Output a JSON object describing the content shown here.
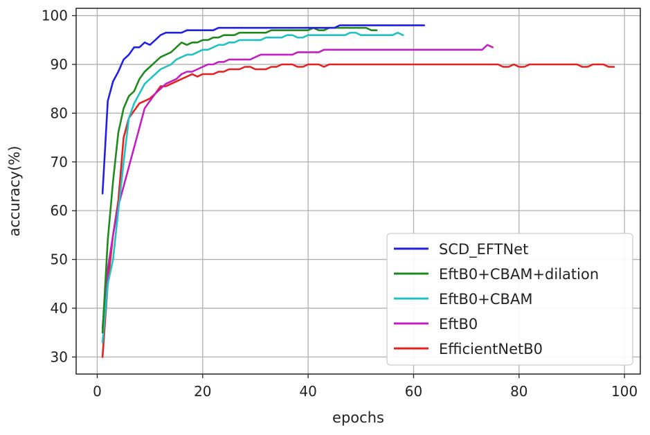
{
  "chart_data": {
    "type": "line",
    "title": "",
    "xlabel": "epochs",
    "ylabel": "accuracy(%)",
    "xlim": [
      -4,
      103
    ],
    "ylim": [
      26.5,
      101.5
    ],
    "xticks": [
      0,
      20,
      40,
      60,
      80,
      100
    ],
    "yticks": [
      30,
      40,
      50,
      60,
      70,
      80,
      90,
      100
    ],
    "grid": true,
    "legend_position": "lower-right",
    "series": [
      {
        "name": "SCD_EFTNet",
        "color": "#1f1fe6",
        "x": [
          1,
          2,
          3,
          4,
          5,
          6,
          7,
          8,
          9,
          10,
          11,
          12,
          13,
          14,
          15,
          16,
          17,
          18,
          19,
          20,
          21,
          22,
          23,
          24,
          25,
          26,
          27,
          28,
          29,
          30,
          31,
          32,
          33,
          34,
          35,
          36,
          37,
          38,
          39,
          40,
          41,
          42,
          43,
          44,
          45,
          46,
          47,
          48,
          49,
          50,
          51,
          52,
          53,
          54,
          55,
          56,
          57,
          58,
          59,
          60,
          61,
          62
        ],
        "y": [
          63.5,
          82.5,
          86.5,
          88.5,
          91,
          92,
          93.5,
          93.5,
          94.5,
          94,
          95,
          96,
          96.5,
          96.5,
          96.5,
          96.5,
          97,
          97,
          97,
          97,
          97,
          97,
          97.5,
          97.5,
          97.5,
          97.5,
          97.5,
          97.5,
          97.5,
          97.5,
          97.5,
          97.5,
          97.5,
          97.5,
          97.5,
          97.5,
          97.5,
          97.5,
          97.5,
          97.5,
          97.5,
          97.5,
          97.5,
          97.5,
          97.5,
          98,
          98,
          98,
          98,
          98,
          98,
          98,
          98,
          98,
          98,
          98,
          98,
          98,
          98,
          98,
          98,
          98
        ]
      },
      {
        "name": "EftB0+CBAM+dilation",
        "color": "#1e8a1e",
        "x": [
          1,
          2,
          3,
          4,
          5,
          6,
          7,
          8,
          9,
          10,
          11,
          12,
          13,
          14,
          15,
          16,
          17,
          18,
          19,
          20,
          21,
          22,
          23,
          24,
          25,
          26,
          27,
          28,
          29,
          30,
          31,
          32,
          33,
          34,
          35,
          36,
          37,
          38,
          39,
          40,
          41,
          42,
          43,
          44,
          45,
          46,
          47,
          48,
          49,
          50,
          51,
          52,
          53
        ],
        "y": [
          35,
          54,
          66,
          76,
          81,
          83.5,
          84.5,
          87,
          88.5,
          89.5,
          90.5,
          91.5,
          92,
          92.5,
          93.5,
          94.5,
          94,
          94.5,
          94.5,
          95,
          95,
          95.5,
          95.5,
          96,
          96,
          96,
          96.5,
          96.5,
          96.5,
          96.5,
          96.5,
          96.5,
          97,
          97,
          97,
          97,
          97,
          97,
          97,
          97,
          97.5,
          97,
          97,
          97.5,
          97.5,
          97.5,
          97.5,
          97.5,
          97.5,
          97.5,
          97.5,
          97,
          97
        ]
      },
      {
        "name": "EftB0+CBAM",
        "color": "#1fc2c2",
        "x": [
          1,
          2,
          3,
          4,
          5,
          6,
          7,
          8,
          9,
          10,
          11,
          12,
          13,
          14,
          15,
          16,
          17,
          18,
          19,
          20,
          21,
          22,
          23,
          24,
          25,
          26,
          27,
          28,
          29,
          30,
          31,
          32,
          33,
          34,
          35,
          36,
          37,
          38,
          39,
          40,
          41,
          42,
          43,
          44,
          45,
          46,
          47,
          48,
          49,
          50,
          51,
          52,
          53,
          54,
          55,
          56,
          57,
          58
        ],
        "y": [
          33,
          45,
          50,
          60,
          70,
          79,
          82,
          84,
          86,
          87,
          88,
          89,
          89.5,
          90,
          91,
          91.5,
          92,
          92,
          92.5,
          93,
          93,
          93.5,
          94,
          94,
          94.5,
          94.5,
          95,
          95,
          95,
          95,
          95,
          95.5,
          95.5,
          95.5,
          95.5,
          96,
          96,
          95.5,
          95.5,
          96,
          96,
          96,
          96,
          96,
          96,
          96,
          96,
          96.5,
          96.5,
          96,
          96,
          96,
          96,
          96,
          96,
          96,
          96.5,
          96
        ]
      },
      {
        "name": "EftB0",
        "color": "#c21fc2",
        "x": [
          1,
          2,
          3,
          4,
          5,
          6,
          7,
          8,
          9,
          10,
          11,
          12,
          13,
          14,
          15,
          16,
          17,
          18,
          19,
          20,
          21,
          22,
          23,
          24,
          25,
          26,
          27,
          28,
          29,
          30,
          31,
          32,
          33,
          34,
          35,
          36,
          37,
          38,
          39,
          40,
          41,
          42,
          43,
          44,
          45,
          46,
          47,
          48,
          49,
          50,
          51,
          52,
          53,
          54,
          55,
          56,
          57,
          58,
          59,
          60,
          61,
          62,
          63,
          64,
          65,
          66,
          67,
          68,
          69,
          70,
          71,
          72,
          73,
          74,
          75
        ],
        "y": [
          36,
          48,
          55,
          61,
          65,
          69,
          73,
          77,
          81,
          82.5,
          84,
          85,
          86,
          86.5,
          87,
          88,
          88.5,
          88.5,
          89,
          89.5,
          90,
          90,
          90.5,
          90.5,
          91,
          91,
          91,
          91,
          91,
          91.5,
          92,
          92,
          92,
          92,
          92,
          92,
          92,
          92.5,
          92.5,
          92.5,
          92.5,
          92.5,
          93,
          93,
          93,
          93,
          93,
          93,
          93,
          93,
          93,
          93,
          93,
          93,
          93,
          93,
          93,
          93,
          93,
          93,
          93,
          93,
          93,
          93,
          93,
          93,
          93,
          93,
          93,
          93,
          93,
          93,
          93,
          94,
          93.5
        ]
      },
      {
        "name": "EfficientNetB0",
        "color": "#e61f1f",
        "x": [
          1,
          2,
          3,
          4,
          5,
          6,
          7,
          8,
          9,
          10,
          11,
          12,
          13,
          14,
          15,
          16,
          17,
          18,
          19,
          20,
          21,
          22,
          23,
          24,
          25,
          26,
          27,
          28,
          29,
          30,
          31,
          32,
          33,
          34,
          35,
          36,
          37,
          38,
          39,
          40,
          41,
          42,
          43,
          44,
          45,
          46,
          47,
          48,
          49,
          50,
          51,
          52,
          53,
          54,
          55,
          56,
          57,
          58,
          59,
          60,
          61,
          62,
          63,
          64,
          65,
          66,
          67,
          68,
          69,
          70,
          71,
          72,
          73,
          74,
          75,
          76,
          77,
          78,
          79,
          80,
          81,
          82,
          83,
          84,
          85,
          86,
          87,
          88,
          89,
          90,
          91,
          92,
          93,
          94,
          95,
          96,
          97,
          98
        ],
        "y": [
          30,
          45,
          55,
          62,
          75,
          79,
          80.5,
          82,
          82.5,
          83,
          84,
          85.5,
          85.5,
          86,
          86.5,
          87,
          87.5,
          88,
          87.5,
          88,
          88,
          88,
          88.5,
          88.5,
          89,
          89,
          89,
          89.5,
          89.5,
          89,
          89,
          89,
          89.5,
          89.5,
          90,
          90,
          90,
          89.5,
          89.5,
          90,
          90,
          90,
          89.5,
          90,
          90,
          90,
          90,
          90,
          90,
          90,
          90,
          90,
          90,
          90,
          90,
          90,
          90,
          90,
          90,
          90,
          90,
          90,
          90,
          90,
          90,
          90,
          90,
          90,
          90,
          90,
          90,
          90,
          90,
          90,
          90,
          90,
          89.5,
          89.5,
          90,
          89.5,
          89.5,
          90,
          90,
          90,
          90,
          90,
          90,
          90,
          90,
          90,
          90,
          89.5,
          89.5,
          90,
          90,
          90,
          89.5,
          89.5
        ]
      }
    ]
  }
}
